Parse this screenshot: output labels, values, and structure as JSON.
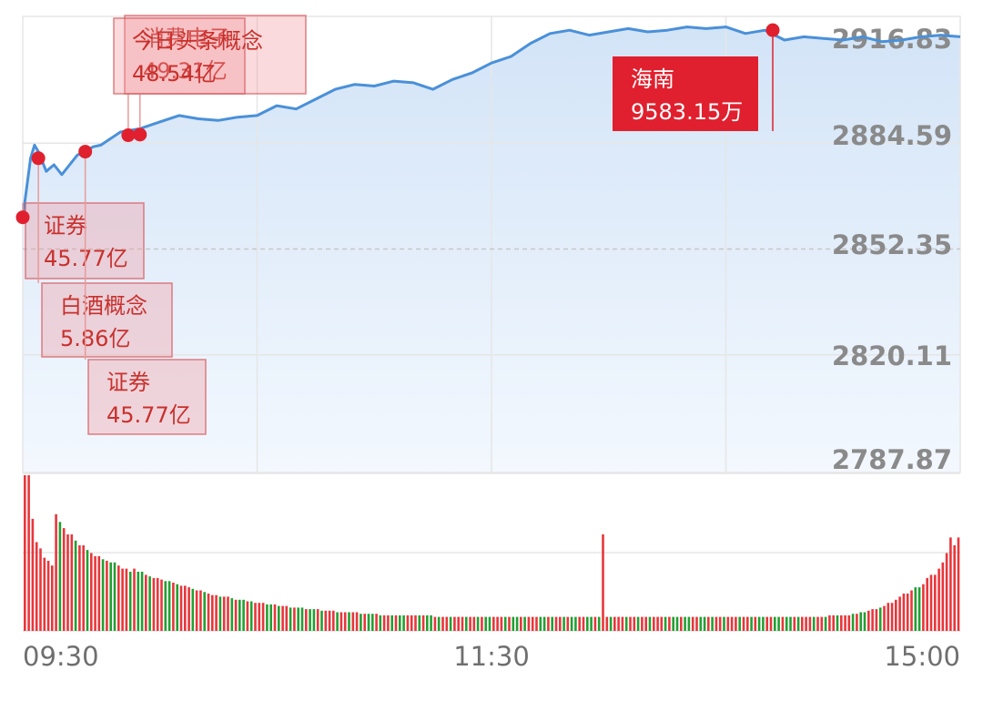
{
  "chart_data": {
    "type": "line",
    "subtype": "intraday-index-with-volume",
    "x_axis": {
      "ticks": [
        "09:30",
        "11:30",
        "15:00"
      ]
    },
    "y_axis": {
      "ticks": [
        "2916.83",
        "2884.59",
        "2852.35",
        "2820.11",
        "2787.87"
      ],
      "range": [
        2787.87,
        2916.83
      ],
      "reference": 2852.35
    },
    "grid": true,
    "series": [
      {
        "x": [
          0,
          2,
          3,
          4,
          6,
          8,
          10,
          12,
          14,
          16,
          18,
          20,
          25,
          30,
          35,
          40,
          45,
          50,
          55,
          60,
          65,
          70,
          75,
          80,
          85,
          90,
          95,
          100,
          105,
          110,
          115,
          120,
          125,
          130,
          135,
          140,
          145,
          150,
          155,
          160,
          165,
          170,
          175,
          180,
          185,
          190,
          195,
          200,
          205,
          210,
          215,
          220,
          225,
          230,
          235,
          240
        ],
        "values": [
          2862.0,
          2880.0,
          2884.0,
          2882.0,
          2876.0,
          2878.0,
          2875.0,
          2878.0,
          2881.0,
          2882.0,
          2883.5,
          2884.0,
          2888.0,
          2889.0,
          2891.0,
          2893.0,
          2892.0,
          2891.5,
          2892.5,
          2893.0,
          2896.0,
          2895.0,
          2898.0,
          2901.0,
          2902.5,
          2902.0,
          2903.5,
          2903.0,
          2901.0,
          2904.0,
          2906.0,
          2909.0,
          2911.0,
          2915.0,
          2918.0,
          2919.0,
          2917.5,
          2918.5,
          2919.5,
          2918.5,
          2919.0,
          2920.0,
          2919.5,
          2920.0,
          2918.0,
          2919.0,
          2916.0,
          2917.0,
          2916.5,
          2916.0,
          2917.0,
          2915.5,
          2916.0,
          2917.0,
          2917.5,
          2917.0
        ]
      }
    ],
    "volume": {
      "pattern": [
        [
          100,
          "up"
        ],
        [
          95,
          "up"
        ],
        [
          90,
          "up"
        ],
        [
          85,
          "down"
        ],
        [
          80,
          "up"
        ],
        [
          75,
          "up"
        ],
        [
          70,
          "down"
        ],
        [
          66,
          "up"
        ],
        [
          62,
          "up"
        ],
        [
          58,
          "down"
        ],
        [
          55,
          "up"
        ],
        [
          52,
          "down"
        ],
        [
          50,
          "up"
        ],
        [
          48,
          "up"
        ],
        [
          46,
          "down"
        ],
        [
          45,
          "up"
        ],
        [
          44,
          "down"
        ],
        [
          42,
          "up"
        ],
        [
          40,
          "up"
        ],
        [
          38,
          "down"
        ],
        [
          40,
          "up"
        ],
        [
          38,
          "down"
        ],
        [
          36,
          "up"
        ],
        [
          35,
          "down"
        ],
        [
          34,
          "up"
        ],
        [
          33,
          "up"
        ],
        [
          32,
          "down"
        ],
        [
          31,
          "up"
        ],
        [
          30,
          "down"
        ],
        [
          29,
          "up"
        ],
        [
          28,
          "up"
        ],
        [
          27,
          "down"
        ],
        [
          26,
          "up"
        ],
        [
          25,
          "down"
        ],
        [
          24,
          "up"
        ],
        [
          23,
          "up"
        ],
        [
          22,
          "down"
        ],
        [
          22,
          "up"
        ],
        [
          21,
          "down"
        ],
        [
          20,
          "up"
        ],
        [
          20,
          "down"
        ],
        [
          19,
          "up"
        ],
        [
          19,
          "down"
        ],
        [
          18,
          "up"
        ],
        [
          18,
          "up"
        ],
        [
          17,
          "down"
        ],
        [
          17,
          "up"
        ],
        [
          16,
          "down"
        ],
        [
          16,
          "up"
        ],
        [
          15,
          "down"
        ],
        [
          15,
          "up"
        ],
        [
          15,
          "down"
        ],
        [
          14,
          "up"
        ],
        [
          14,
          "down"
        ],
        [
          14,
          "up"
        ],
        [
          13,
          "down"
        ],
        [
          13,
          "up"
        ],
        [
          13,
          "up"
        ],
        [
          12,
          "down"
        ],
        [
          12,
          "up"
        ],
        [
          12,
          "down"
        ],
        [
          12,
          "up"
        ],
        [
          11,
          "down"
        ],
        [
          11,
          "up"
        ],
        [
          11,
          "down"
        ],
        [
          11,
          "up"
        ],
        [
          10,
          "down"
        ],
        [
          10,
          "up"
        ],
        [
          10,
          "down"
        ],
        [
          10,
          "up"
        ],
        [
          10,
          "down"
        ],
        [
          10,
          "up"
        ],
        [
          10,
          "up"
        ],
        [
          10,
          "down"
        ],
        [
          10,
          "up"
        ],
        [
          10,
          "down"
        ],
        [
          9,
          "up"
        ],
        [
          9,
          "down"
        ],
        [
          9,
          "up"
        ],
        [
          9,
          "down"
        ],
        [
          9,
          "up"
        ],
        [
          9,
          "up"
        ],
        [
          9,
          "down"
        ],
        [
          9,
          "up"
        ],
        [
          9,
          "down"
        ],
        [
          9,
          "up"
        ],
        [
          9,
          "down"
        ],
        [
          9,
          "up"
        ],
        [
          9,
          "up"
        ],
        [
          9,
          "down"
        ],
        [
          9,
          "up"
        ],
        [
          9,
          "down"
        ],
        [
          9,
          "up"
        ],
        [
          9,
          "down"
        ],
        [
          9,
          "up"
        ],
        [
          9,
          "up"
        ],
        [
          9,
          "down"
        ],
        [
          9,
          "up"
        ],
        [
          9,
          "down"
        ],
        [
          9,
          "up"
        ],
        [
          9,
          "down"
        ],
        [
          9,
          "up"
        ],
        [
          9,
          "down"
        ],
        [
          9,
          "up"
        ],
        [
          9,
          "up"
        ],
        [
          9,
          "down"
        ],
        [
          9,
          "up"
        ],
        [
          9,
          "down"
        ],
        [
          9,
          "up"
        ],
        [
          9,
          "down"
        ],
        [
          9,
          "up"
        ],
        [
          9,
          "up"
        ],
        [
          9,
          "down"
        ],
        [
          9,
          "up"
        ],
        [
          9,
          "down"
        ],
        [
          9,
          "up"
        ],
        [
          9,
          "down"
        ],
        [
          9,
          "up"
        ],
        [
          9,
          "up"
        ],
        [
          9,
          "down"
        ],
        [
          9,
          "up"
        ],
        [
          9,
          "down"
        ],
        [
          9,
          "up"
        ],
        [
          9,
          "down"
        ],
        [
          9,
          "up"
        ],
        [
          9,
          "up"
        ],
        [
          9,
          "down"
        ],
        [
          9,
          "up"
        ],
        [
          9,
          "down"
        ],
        [
          9,
          "up"
        ],
        [
          9,
          "down"
        ],
        [
          9,
          "up"
        ],
        [
          9,
          "up"
        ],
        [
          9,
          "down"
        ],
        [
          9,
          "up"
        ],
        [
          9,
          "down"
        ],
        [
          9,
          "up"
        ],
        [
          9,
          "down"
        ],
        [
          9,
          "up"
        ],
        [
          9,
          "up"
        ],
        [
          9,
          "down"
        ],
        [
          9,
          "up"
        ],
        [
          9,
          "down"
        ],
        [
          9,
          "up"
        ],
        [
          9,
          "down"
        ],
        [
          9,
          "up"
        ],
        [
          9,
          "up"
        ],
        [
          9,
          "down"
        ],
        [
          9,
          "up"
        ],
        [
          9,
          "down"
        ],
        [
          10,
          "up"
        ],
        [
          10,
          "down"
        ],
        [
          10,
          "up"
        ],
        [
          10,
          "up"
        ],
        [
          11,
          "down"
        ],
        [
          11,
          "up"
        ],
        [
          12,
          "down"
        ],
        [
          13,
          "up"
        ],
        [
          14,
          "up"
        ],
        [
          15,
          "down"
        ],
        [
          16,
          "up"
        ],
        [
          18,
          "up"
        ],
        [
          20,
          "up"
        ],
        [
          22,
          "up"
        ],
        [
          24,
          "up"
        ],
        [
          26,
          "up"
        ],
        [
          28,
          "down"
        ],
        [
          30,
          "up"
        ],
        [
          34,
          "up"
        ],
        [
          36,
          "up"
        ],
        [
          40,
          "up"
        ],
        [
          44,
          "up"
        ],
        [
          50,
          "up"
        ],
        [
          55,
          "up"
        ],
        [
          60,
          "up"
        ]
      ],
      "overrides": [
        [
          0,
          100
        ],
        [
          2,
          72
        ],
        [
          3,
          57
        ],
        [
          4,
          53
        ],
        [
          5,
          47
        ],
        [
          6,
          45
        ],
        [
          7,
          42
        ],
        [
          148,
          62
        ],
        [
          237,
          60
        ]
      ]
    },
    "annotations": [
      {
        "name": "消费电子",
        "value": "49.31亿",
        "x": 27,
        "y": 2887.0
      },
      {
        "name": "今日头条概念",
        "value": "48.54亿",
        "x": 30,
        "y": 2887.2
      },
      {
        "name": "证券",
        "value": "45.77亿",
        "x": 0,
        "y": 2862.0
      },
      {
        "name": "白酒概念",
        "value": "5.86亿",
        "x": 4,
        "y": 2880.0
      },
      {
        "name": "证券",
        "value": "45.77亿",
        "x": 16,
        "y": 2882.0
      },
      {
        "name": "海南",
        "value": "9583.15万",
        "x": 192,
        "y": 2919.0
      }
    ]
  },
  "colors": {
    "line": "#4a90d9",
    "area_top": "#d3e4f7",
    "area_bottom": "#f3f8fe",
    "grid": "#e6e6e6",
    "axis_text": "#8a8a8a",
    "up_bar": "#e8363b",
    "down_bar": "#22a033",
    "marker": "#e0202e",
    "note_text": "#c9302c",
    "hainan_box": "#e0202e"
  }
}
